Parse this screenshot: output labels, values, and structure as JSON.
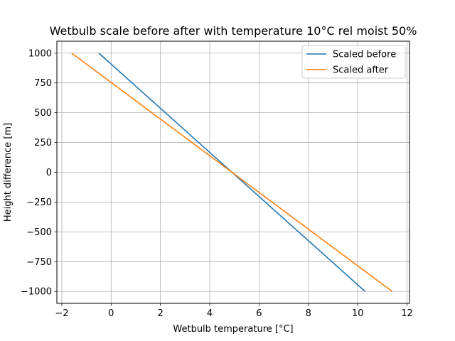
{
  "chart_data": {
    "type": "line",
    "title": "Wetbulb scale before after with temperature 10°C rel moist 50%",
    "xlabel": "Wetbulb temperature [°C]",
    "ylabel": "Height difference [m]",
    "xlim": [
      -2.2,
      12.1
    ],
    "ylim": [
      -1100,
      1100
    ],
    "xticks": [
      -2,
      0,
      2,
      4,
      6,
      8,
      10,
      12
    ],
    "yticks": [
      -1000,
      -750,
      -500,
      -250,
      0,
      250,
      500,
      750,
      1000
    ],
    "xtick_labels": [
      "−2",
      "0",
      "2",
      "4",
      "6",
      "8",
      "10",
      "12"
    ],
    "ytick_labels": [
      "−1000",
      "−750",
      "−500",
      "−250",
      "0",
      "250",
      "500",
      "750",
      "1000"
    ],
    "grid": true,
    "legend_position": "top-right",
    "series": [
      {
        "name": "Scaled before",
        "color": "#1f77b4",
        "x": [
          -0.5,
          10.3
        ],
        "y": [
          1000,
          -1000
        ]
      },
      {
        "name": "Scaled after",
        "color": "#ff7f0e",
        "x": [
          -1.6,
          11.4
        ],
        "y": [
          1000,
          -1000
        ]
      }
    ]
  }
}
